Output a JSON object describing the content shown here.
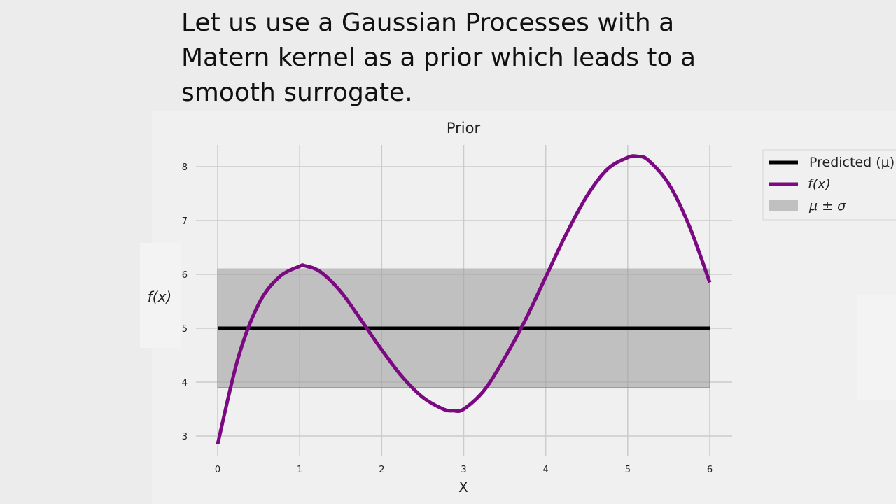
{
  "slide": {
    "text_lines": [
      "Let us use a Gaussian Processes with a",
      "Matern kernel as a prior which leads to a",
      "smooth surrogate."
    ]
  },
  "colors": {
    "background": "#ececec",
    "plot_background": "#f0f0f0",
    "grid": "#cbcbcb",
    "mean_line": "#000000",
    "function_line": "#7b0a82",
    "band_fill": "#a0a0a0"
  },
  "chart_data": {
    "type": "line",
    "title": "Prior",
    "xlabel": "X",
    "ylabel": "f(x)",
    "xlim": [
      0,
      6
    ],
    "ylim": [
      2.8,
      8.4
    ],
    "x_ticks": [
      0,
      1,
      2,
      3,
      4,
      5,
      6
    ],
    "y_ticks": [
      3,
      4,
      5,
      6,
      7,
      8
    ],
    "grid": true,
    "legend_position": "top-right",
    "series": [
      {
        "name": "Predicted (μ)",
        "kind": "line",
        "color": "#000000",
        "x": [
          0,
          6
        ],
        "y": [
          5.0,
          5.0
        ]
      },
      {
        "name": "f(x)",
        "kind": "line",
        "color": "#7b0a82",
        "x": [
          0,
          0.25,
          0.5,
          0.75,
          1.0,
          1.06,
          1.25,
          1.5,
          1.75,
          2.0,
          2.25,
          2.5,
          2.75,
          2.87,
          3.0,
          3.25,
          3.5,
          3.75,
          4.0,
          4.25,
          4.5,
          4.75,
          5.0,
          5.12,
          5.25,
          5.5,
          5.75,
          6.0
        ],
        "y": [
          2.85,
          4.45,
          5.45,
          5.95,
          6.15,
          6.16,
          6.05,
          5.68,
          5.15,
          4.6,
          4.1,
          3.72,
          3.5,
          3.47,
          3.5,
          3.85,
          4.45,
          5.15,
          5.95,
          6.75,
          7.45,
          7.95,
          8.17,
          8.19,
          8.12,
          7.68,
          6.9,
          5.85
        ]
      },
      {
        "name": "μ ± σ",
        "kind": "band",
        "color": "#a0a0a0",
        "x": [
          0,
          6
        ],
        "lower": [
          3.9,
          3.9
        ],
        "upper": [
          6.1,
          6.1
        ]
      }
    ]
  }
}
